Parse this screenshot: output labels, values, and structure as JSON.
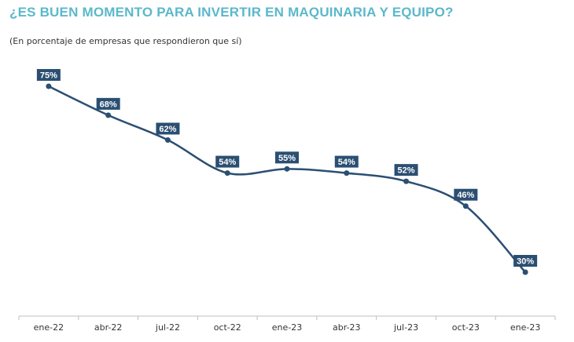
{
  "chart_data": {
    "type": "line",
    "title": "¿ES BUEN MOMENTO PARA INVERTIR EN MAQUINARIA Y EQUIPO?",
    "subtitle": "(En porcentaje de empresas que respondieron que sí)",
    "categories": [
      "ene-22",
      "abr-22",
      "jul-22",
      "oct-22",
      "ene-23",
      "abr-23",
      "jul-23",
      "oct-23",
      "ene-23"
    ],
    "values": [
      75,
      68,
      62,
      54,
      55,
      54,
      52,
      46,
      30
    ],
    "labels": [
      "75%",
      "68%",
      "62%",
      "54%",
      "55%",
      "54%",
      "52%",
      "46%",
      "30%"
    ],
    "grid": false,
    "legend": "none"
  },
  "colors": {
    "title": "#5bb8cb",
    "line": "#2b4f72",
    "label_bg": "#2b4f72",
    "axis": "#bfbfbf"
  }
}
